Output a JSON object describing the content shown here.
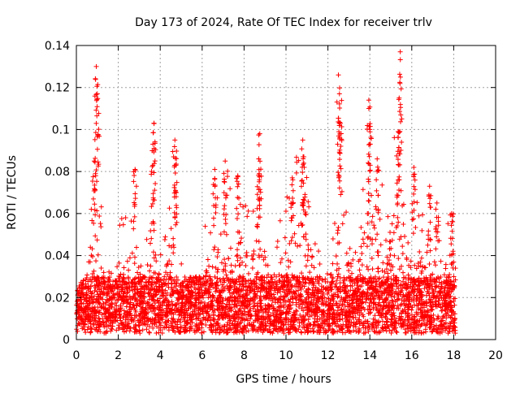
{
  "colors": {
    "series": "#ff0000",
    "axis": "#000000",
    "grid": "#a0a0a0",
    "background": "#ffffff"
  },
  "chart_data": {
    "type": "scatter",
    "title": "Day 173 of 2024, Rate Of TEC Index for receiver trlv",
    "xlabel": "GPS time / hours",
    "ylabel": "ROTI / TECUs",
    "xlim": [
      0,
      20
    ],
    "ylim": [
      0,
      0.14
    ],
    "xticks": [
      0,
      2,
      4,
      6,
      8,
      10,
      12,
      14,
      16,
      18,
      20
    ],
    "xtick_labels": [
      "0",
      "2",
      "4",
      "6",
      "8",
      "10",
      "12",
      "14",
      "16",
      "18",
      "20"
    ],
    "yticks": [
      0,
      0.02,
      0.04,
      0.06,
      0.08,
      0.1,
      0.12,
      0.14
    ],
    "ytick_labels": [
      "0",
      "0.02",
      "0.04",
      "0.06",
      "0.08",
      "0.1",
      "0.12",
      "0.14"
    ],
    "grid": true,
    "marker": "+",
    "data_x_range": [
      0.0,
      18.1
    ],
    "background_level": 0.015,
    "upper_envelope": [
      [
        0.0,
        0.022
      ],
      [
        0.3,
        0.036
      ],
      [
        0.6,
        0.038
      ],
      [
        0.8,
        0.085
      ],
      [
        1.0,
        0.13
      ],
      [
        1.2,
        0.07
      ],
      [
        1.5,
        0.04
      ],
      [
        1.8,
        0.055
      ],
      [
        2.1,
        0.06
      ],
      [
        2.5,
        0.06
      ],
      [
        2.8,
        0.081
      ],
      [
        3.0,
        0.05
      ],
      [
        3.3,
        0.04
      ],
      [
        3.6,
        0.103
      ],
      [
        3.9,
        0.05
      ],
      [
        4.2,
        0.045
      ],
      [
        4.6,
        0.095
      ],
      [
        4.9,
        0.04
      ],
      [
        5.3,
        0.028
      ],
      [
        5.7,
        0.035
      ],
      [
        6.2,
        0.06
      ],
      [
        6.5,
        0.073
      ],
      [
        7.0,
        0.085
      ],
      [
        7.5,
        0.075
      ],
      [
        7.9,
        0.075
      ],
      [
        8.3,
        0.06
      ],
      [
        8.7,
        0.098
      ],
      [
        9.2,
        0.05
      ],
      [
        9.7,
        0.06
      ],
      [
        10.2,
        0.075
      ],
      [
        10.7,
        0.095
      ],
      [
        11.2,
        0.07
      ],
      [
        11.6,
        0.04
      ],
      [
        12.0,
        0.035
      ],
      [
        12.4,
        0.08
      ],
      [
        12.6,
        0.126
      ],
      [
        13.0,
        0.06
      ],
      [
        13.5,
        0.06
      ],
      [
        14.0,
        0.114
      ],
      [
        14.4,
        0.086
      ],
      [
        14.8,
        0.06
      ],
      [
        15.4,
        0.137
      ],
      [
        15.7,
        0.07
      ],
      [
        16.1,
        0.082
      ],
      [
        16.5,
        0.06
      ],
      [
        17.0,
        0.055
      ],
      [
        17.4,
        0.065
      ],
      [
        17.8,
        0.06
      ],
      [
        18.1,
        0.06
      ]
    ],
    "peaks": [
      {
        "x": 0.95,
        "y": 0.13
      },
      {
        "x": 1.0,
        "y": 0.117
      },
      {
        "x": 0.85,
        "y": 0.085
      },
      {
        "x": 2.8,
        "y": 0.081
      },
      {
        "x": 3.7,
        "y": 0.103
      },
      {
        "x": 3.65,
        "y": 0.093
      },
      {
        "x": 4.7,
        "y": 0.095
      },
      {
        "x": 4.75,
        "y": 0.083
      },
      {
        "x": 6.6,
        "y": 0.081
      },
      {
        "x": 7.1,
        "y": 0.085
      },
      {
        "x": 7.7,
        "y": 0.078
      },
      {
        "x": 8.75,
        "y": 0.098
      },
      {
        "x": 8.7,
        "y": 0.086
      },
      {
        "x": 10.3,
        "y": 0.077
      },
      {
        "x": 10.8,
        "y": 0.095
      },
      {
        "x": 10.85,
        "y": 0.087
      },
      {
        "x": 12.5,
        "y": 0.126
      },
      {
        "x": 12.55,
        "y": 0.117
      },
      {
        "x": 12.6,
        "y": 0.103
      },
      {
        "x": 13.95,
        "y": 0.114
      },
      {
        "x": 14.0,
        "y": 0.1
      },
      {
        "x": 14.35,
        "y": 0.086
      },
      {
        "x": 15.45,
        "y": 0.137
      },
      {
        "x": 15.4,
        "y": 0.115
      },
      {
        "x": 15.35,
        "y": 0.099
      },
      {
        "x": 16.1,
        "y": 0.082
      },
      {
        "x": 16.85,
        "y": 0.073
      },
      {
        "x": 17.2,
        "y": 0.065
      },
      {
        "x": 17.9,
        "y": 0.06
      }
    ]
  }
}
